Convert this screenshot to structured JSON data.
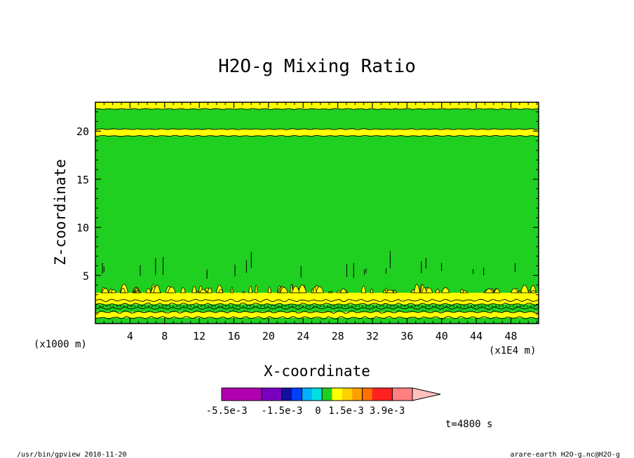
{
  "chart_data": {
    "type": "heatmap",
    "title": "H2O-g Mixing Ratio",
    "xlabel": "X-coordinate",
    "ylabel": "Z-coordinate",
    "x_unit": "(x1E4 m)",
    "y_unit": "(x1000 m)",
    "x_ticks": [
      "4",
      "8",
      "12",
      "16",
      "20",
      "24",
      "28",
      "32",
      "36",
      "40",
      "44",
      "48"
    ],
    "x_tick_values": [
      4,
      8,
      12,
      16,
      20,
      24,
      28,
      32,
      36,
      40,
      44,
      48
    ],
    "y_ticks": [
      "5",
      "10",
      "15",
      "20"
    ],
    "y_tick_values": [
      5,
      10,
      15,
      20
    ],
    "xlim": [
      0,
      51.2
    ],
    "ylim": [
      0,
      23
    ],
    "colorbar": {
      "colors": [
        "#b000b0",
        "#b000b0",
        "#b000b0",
        "#b000b0",
        "#7a00c0",
        "#7a00c0",
        "#1010a0",
        "#0040ff",
        "#00b0ff",
        "#00e0e0",
        "#20d020",
        "#ffff00",
        "#ffd000",
        "#ffa000",
        "#ff7000",
        "#ff2020",
        "#ff2020",
        "#ff8080",
        "#ff8080",
        "#ffc0c0"
      ],
      "tick_labels": [
        "-5.5e-3",
        "-1.5e-3",
        "0",
        "1.5e-3",
        "3.9e-3"
      ]
    },
    "layers": [
      {
        "z0": 0.0,
        "z1": 0.6,
        "color": "#20d020"
      },
      {
        "z0": 0.6,
        "z1": 1.2,
        "color": "#ffff00"
      },
      {
        "z0": 1.2,
        "z1": 2.0,
        "color": "#20d020"
      },
      {
        "z0": 2.0,
        "z1": 3.2,
        "color": "#ffff00"
      },
      {
        "z0": 3.2,
        "z1": 19.5,
        "color": "#20d020"
      },
      {
        "z0": 19.5,
        "z1": 20.2,
        "color": "#ffff00"
      },
      {
        "z0": 20.2,
        "z1": 22.3,
        "color": "#20d020"
      },
      {
        "z0": 22.3,
        "z1": 23.0,
        "color": "#ffff00"
      }
    ],
    "contour_levels_z": [
      0.6,
      1.2,
      1.6,
      2.0,
      2.4,
      19.5,
      20.2,
      22.3
    ],
    "time_label": "t=4800 s"
  },
  "footer": {
    "left": "/usr/bin/gpview  2010-11-20",
    "right": "arare-earth_H2O-g.nc@H2O-g"
  },
  "colors": {
    "green": "#20d020",
    "yellow": "#ffff00",
    "frame": "#000000"
  }
}
